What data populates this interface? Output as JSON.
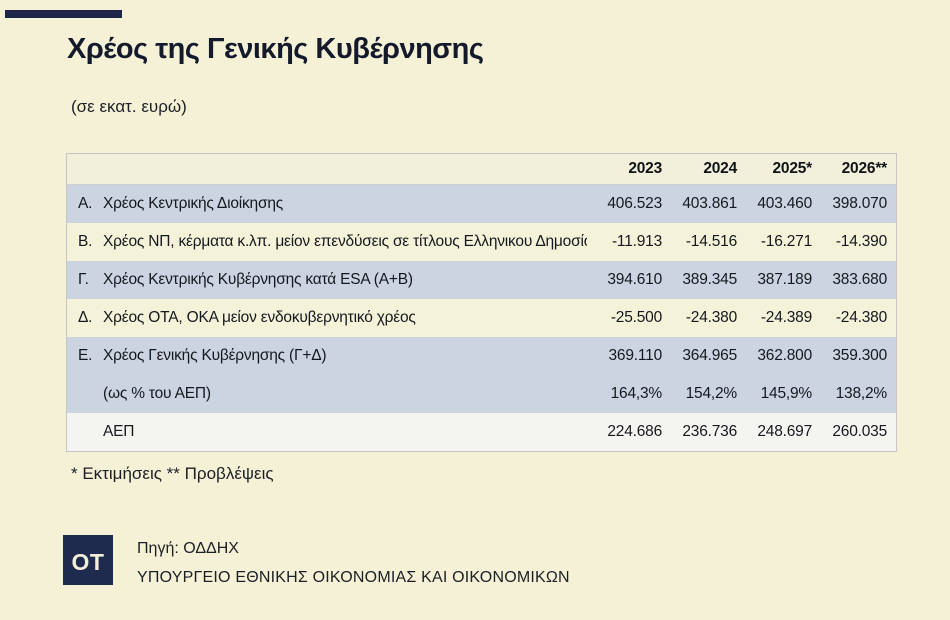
{
  "page": {
    "title": "Χρέος της Γενικής Κυβέρνησης",
    "subtitle": "(σε εκατ. ευρώ)",
    "footnote": "* Εκτιμήσεις ** Προβλέψεις"
  },
  "colors": {
    "background": "#f4f1d6",
    "accent_navy": "#1d2649",
    "row_lavender": "#ccd3e1",
    "row_cream": "#f4f2d9",
    "row_gdp_white": "#f4f4f0",
    "header_cream": "#f2f0db"
  },
  "chart_data": {
    "type": "table",
    "title": "Χρέος της Γενικής Κυβέρνησης",
    "unit": "σε εκατ. ευρώ",
    "columns": [
      "2023",
      "2024",
      "2025*",
      "2026**"
    ],
    "rows": [
      {
        "key": "Α.",
        "label": "Χρέος Κεντρικής Διοίκησης",
        "values": [
          "406.523",
          "403.861",
          "403.460",
          "398.070"
        ]
      },
      {
        "key": "Β.",
        "label": "Χρέος ΝΠ, κέρματα κ.λπ. μείον επενδύσεις σε τίτλους Ελληνικου Δημοσίου",
        "values": [
          "-11.913",
          "-14.516",
          "-16.271",
          "-14.390"
        ]
      },
      {
        "key": "Γ.",
        "label": "Χρέος Κεντρικής Κυβέρνησης κατά ESA (Α+Β)",
        "values": [
          "394.610",
          "389.345",
          "387.189",
          "383.680"
        ]
      },
      {
        "key": "Δ.",
        "label": "Χρέος ΟΤΑ, ΟΚΑ μείον ενδοκυβερνητικό χρέος",
        "values": [
          "-25.500",
          "-24.380",
          "-24.389",
          "-24.380"
        ]
      },
      {
        "key": "Ε.",
        "label": "Χρέος Γενικής Κυβέρνησης (Γ+Δ)",
        "values": [
          "369.110",
          "364.965",
          "362.800",
          "359.300"
        ]
      },
      {
        "key": "",
        "label": "(ως % του ΑΕΠ)",
        "values": [
          "164,3%",
          "154,2%",
          "145,9%",
          "138,2%"
        ]
      },
      {
        "key": "",
        "label": "ΑΕΠ",
        "values": [
          "224.686",
          "236.736",
          "248.697",
          "260.035"
        ]
      }
    ],
    "footnote": "* Εκτιμήσεις ** Προβλέψεις"
  },
  "footer": {
    "logo_text": "OT",
    "source": "Πηγή: ΟΔΔΗΧ",
    "ministry": "ΥΠΟΥΡΓΕΙΟ ΕΘΝΙΚΗΣ ΟΙΚΟΝΟΜΙΑΣ ΚΑΙ ΟΙΚΟΝΟΜΙΚΩΝ"
  }
}
